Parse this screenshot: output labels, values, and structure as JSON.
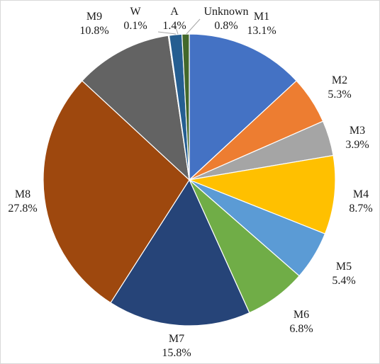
{
  "chart_data": {
    "type": "pie",
    "start": "12 o'clock",
    "direction": "clockwise",
    "slices": [
      {
        "name": "M1",
        "value": 13.1,
        "label": "13.1%",
        "color": "#4472C4"
      },
      {
        "name": "M2",
        "value": 5.3,
        "label": "5.3%",
        "color": "#ED7D31"
      },
      {
        "name": "M3",
        "value": 3.9,
        "label": "3.9%",
        "color": "#A5A5A5"
      },
      {
        "name": "M4",
        "value": 8.7,
        "label": "8.7%",
        "color": "#FFC000"
      },
      {
        "name": "M5",
        "value": 5.4,
        "label": "5.4%",
        "color": "#5B9BD5"
      },
      {
        "name": "M6",
        "value": 6.8,
        "label": "6.8%",
        "color": "#70AD47"
      },
      {
        "name": "M7",
        "value": 15.8,
        "label": "15.8%",
        "color": "#264478"
      },
      {
        "name": "M8",
        "value": 27.8,
        "label": "27.8%",
        "color": "#9E480E"
      },
      {
        "name": "M9",
        "value": 10.8,
        "label": "10.8%",
        "color": "#636363"
      },
      {
        "name": "W",
        "value": 0.1,
        "label": "0.1%",
        "color": "#997300"
      },
      {
        "name": "A",
        "value": 1.4,
        "label": "1.4%",
        "color": "#255E91"
      },
      {
        "name": "Unknown",
        "value": 0.8,
        "label": "0.8%",
        "color": "#43682B"
      }
    ]
  }
}
